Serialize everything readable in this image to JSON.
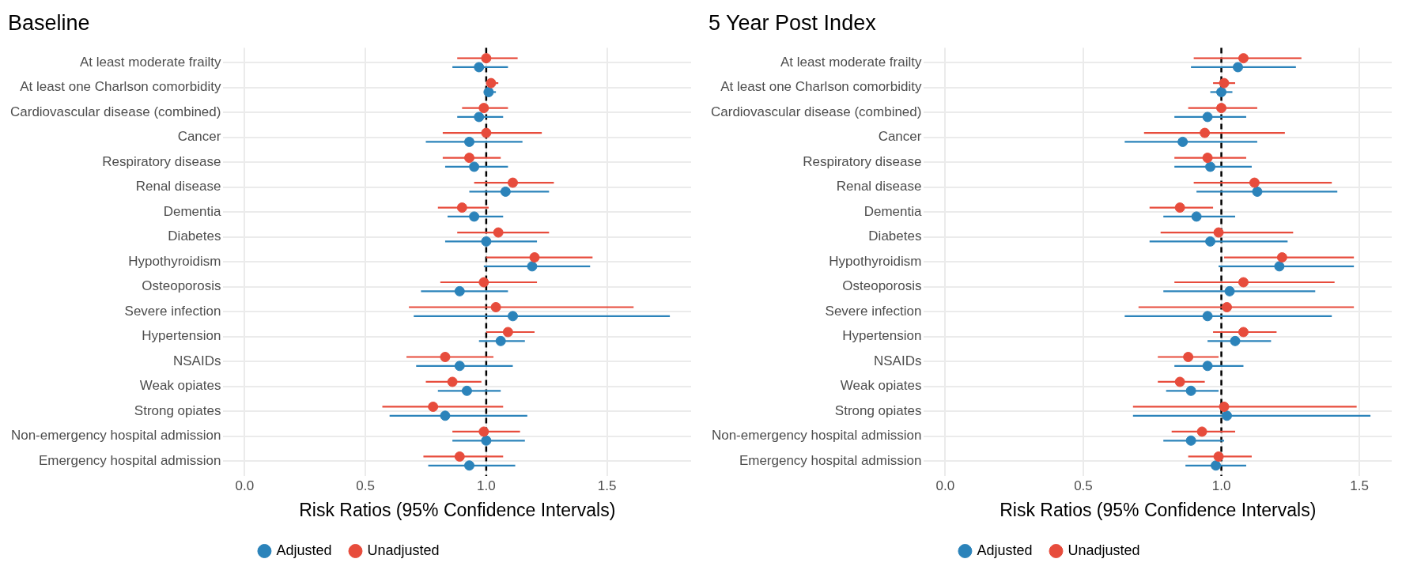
{
  "chart_data": [
    {
      "type": "scatter",
      "title": "Baseline",
      "xlabel": "Risk Ratios (95% Confidence Intervals)",
      "orientation": "horizontal",
      "categories": [
        "At least moderate frailty",
        "At least one Charlson comorbidity",
        "Cardiovascular disease (combined)",
        "Cancer",
        "Respiratory disease",
        "Renal disease",
        "Dementia",
        "Diabetes",
        "Hypothyroidism",
        "Osteoporosis",
        "Severe infection",
        "Hypertension",
        "NSAIDs",
        "Weak opiates",
        "Strong opiates",
        "Non-emergency hospital admission",
        "Emergency hospital admission"
      ],
      "series": [
        {
          "name": "Adjusted",
          "color": "#2b83ba",
          "values": [
            0.97,
            1.01,
            0.97,
            0.93,
            0.95,
            1.08,
            0.95,
            1.0,
            1.19,
            0.89,
            1.11,
            1.06,
            0.89,
            0.92,
            0.83,
            1.0,
            0.93
          ],
          "errors": [
            [
              0.86,
              1.09
            ],
            [
              0.99,
              1.04
            ],
            [
              0.88,
              1.07
            ],
            [
              0.75,
              1.15
            ],
            [
              0.83,
              1.09
            ],
            [
              0.93,
              1.26
            ],
            [
              0.84,
              1.07
            ],
            [
              0.83,
              1.21
            ],
            [
              0.99,
              1.43
            ],
            [
              0.73,
              1.09
            ],
            [
              0.7,
              1.76
            ],
            [
              0.97,
              1.16
            ],
            [
              0.71,
              1.11
            ],
            [
              0.8,
              1.06
            ],
            [
              0.6,
              1.17
            ],
            [
              0.86,
              1.16
            ],
            [
              0.76,
              1.12
            ]
          ]
        },
        {
          "name": "Unadjusted",
          "color": "#e74c3c",
          "values": [
            1.0,
            1.02,
            0.99,
            1.0,
            0.93,
            1.11,
            0.9,
            1.05,
            1.2,
            0.99,
            1.04,
            1.09,
            0.83,
            0.86,
            0.78,
            0.99,
            0.89
          ],
          "errors": [
            [
              0.88,
              1.13
            ],
            [
              1.0,
              1.05
            ],
            [
              0.9,
              1.09
            ],
            [
              0.82,
              1.23
            ],
            [
              0.82,
              1.06
            ],
            [
              0.95,
              1.28
            ],
            [
              0.8,
              1.01
            ],
            [
              0.88,
              1.26
            ],
            [
              1.0,
              1.44
            ],
            [
              0.81,
              1.21
            ],
            [
              0.68,
              1.61
            ],
            [
              1.0,
              1.2
            ],
            [
              0.67,
              1.03
            ],
            [
              0.75,
              0.98
            ],
            [
              0.57,
              1.07
            ],
            [
              0.86,
              1.14
            ],
            [
              0.74,
              1.07
            ]
          ]
        }
      ],
      "xlim": [
        -0.088,
        1.848
      ],
      "xticks": [
        {
          "value": 0,
          "label": "0.0"
        },
        {
          "value": 0.5,
          "label": "0.5"
        },
        {
          "value": 1,
          "label": "1.0"
        },
        {
          "value": 1.5,
          "label": "1.5"
        }
      ],
      "ref_lines": [
        {
          "axis": "x",
          "value": 1,
          "color": "#000000",
          "line_style": "dashed"
        }
      ],
      "grid": true,
      "legend": "bottom",
      "marker": "circle"
    },
    {
      "type": "scatter",
      "title": "5 Year Post Index",
      "xlabel": "Risk Ratios (95% Confidence Intervals)",
      "orientation": "horizontal",
      "categories": [
        "At least moderate frailty",
        "At least one Charlson comorbidity",
        "Cardiovascular disease (combined)",
        "Cancer",
        "Respiratory disease",
        "Renal disease",
        "Dementia",
        "Diabetes",
        "Hypothyroidism",
        "Osteoporosis",
        "Severe infection",
        "Hypertension",
        "NSAIDs",
        "Weak opiates",
        "Strong opiates",
        "Non-emergency hospital admission",
        "Emergency hospital admission"
      ],
      "series": [
        {
          "name": "Adjusted",
          "color": "#2b83ba",
          "values": [
            1.06,
            1.0,
            0.95,
            0.86,
            0.96,
            1.13,
            0.91,
            0.96,
            1.21,
            1.03,
            0.95,
            1.05,
            0.95,
            0.89,
            1.02,
            0.89,
            0.98
          ],
          "errors": [
            [
              0.89,
              1.27
            ],
            [
              0.96,
              1.04
            ],
            [
              0.83,
              1.09
            ],
            [
              0.65,
              1.13
            ],
            [
              0.83,
              1.11
            ],
            [
              0.91,
              1.42
            ],
            [
              0.79,
              1.05
            ],
            [
              0.74,
              1.24
            ],
            [
              0.99,
              1.48
            ],
            [
              0.79,
              1.34
            ],
            [
              0.65,
              1.4
            ],
            [
              0.95,
              1.18
            ],
            [
              0.83,
              1.08
            ],
            [
              0.8,
              0.99
            ],
            [
              0.68,
              1.54
            ],
            [
              0.79,
              1.01
            ],
            [
              0.87,
              1.09
            ]
          ]
        },
        {
          "name": "Unadjusted",
          "color": "#e74c3c",
          "values": [
            1.08,
            1.01,
            1.0,
            0.94,
            0.95,
            1.12,
            0.85,
            0.99,
            1.22,
            1.08,
            1.02,
            1.08,
            0.88,
            0.85,
            1.01,
            0.93,
            0.99
          ],
          "errors": [
            [
              0.9,
              1.29
            ],
            [
              0.97,
              1.05
            ],
            [
              0.88,
              1.13
            ],
            [
              0.72,
              1.23
            ],
            [
              0.83,
              1.09
            ],
            [
              0.9,
              1.4
            ],
            [
              0.74,
              0.97
            ],
            [
              0.78,
              1.26
            ],
            [
              1.01,
              1.48
            ],
            [
              0.83,
              1.41
            ],
            [
              0.7,
              1.48
            ],
            [
              0.97,
              1.2
            ],
            [
              0.77,
              0.99
            ],
            [
              0.77,
              0.94
            ],
            [
              0.68,
              1.49
            ],
            [
              0.82,
              1.05
            ],
            [
              0.88,
              1.11
            ]
          ]
        }
      ],
      "xlim": [
        -0.077,
        1.617
      ],
      "xticks": [
        {
          "value": 0,
          "label": "0.0"
        },
        {
          "value": 0.5,
          "label": "0.5"
        },
        {
          "value": 1,
          "label": "1.0"
        },
        {
          "value": 1.5,
          "label": "1.5"
        }
      ],
      "ref_lines": [
        {
          "axis": "x",
          "value": 1,
          "color": "#000000",
          "line_style": "dashed"
        }
      ],
      "grid": true,
      "legend": "bottom",
      "marker": "circle"
    }
  ]
}
